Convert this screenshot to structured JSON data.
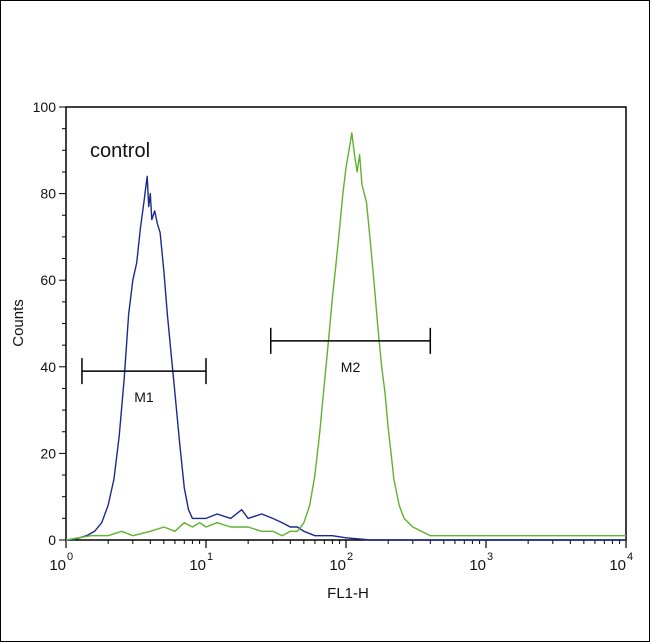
{
  "chart_data": {
    "type": "line",
    "xscale": "log",
    "xlim": [
      1,
      10000
    ],
    "ylim": [
      0,
      100
    ],
    "xlabel": "FL1-H",
    "ylabel": "Counts",
    "annotation": "control",
    "x_ticks": [
      {
        "value": 1,
        "base": "10",
        "exp": "0"
      },
      {
        "value": 10,
        "base": "10",
        "exp": "1"
      },
      {
        "value": 100,
        "base": "10",
        "exp": "2"
      },
      {
        "value": 1000,
        "base": "10",
        "exp": "3"
      },
      {
        "value": 10000,
        "base": "10",
        "exp": "4"
      }
    ],
    "y_ticks": [
      0,
      20,
      40,
      60,
      80,
      100
    ],
    "gates": [
      {
        "label": "M1",
        "x1": 1.3,
        "x2": 10,
        "y": 39
      },
      {
        "label": "M2",
        "x1": 29,
        "x2": 400,
        "y": 46
      }
    ],
    "series": [
      {
        "color": "#1a2a8c",
        "points": [
          [
            1,
            0
          ],
          [
            1.12,
            0
          ],
          [
            1.25,
            0.5
          ],
          [
            1.4,
            1
          ],
          [
            1.6,
            2
          ],
          [
            1.8,
            4
          ],
          [
            2.0,
            8
          ],
          [
            2.2,
            14
          ],
          [
            2.4,
            24
          ],
          [
            2.6,
            37
          ],
          [
            2.8,
            52
          ],
          [
            3.0,
            60
          ],
          [
            3.2,
            64
          ],
          [
            3.4,
            72
          ],
          [
            3.6,
            78
          ],
          [
            3.7,
            81
          ],
          [
            3.8,
            84
          ],
          [
            3.9,
            77
          ],
          [
            4.0,
            80
          ],
          [
            4.1,
            74
          ],
          [
            4.3,
            76
          ],
          [
            4.5,
            73
          ],
          [
            4.7,
            71
          ],
          [
            5.0,
            62
          ],
          [
            5.3,
            52
          ],
          [
            5.6,
            44
          ],
          [
            6.0,
            34
          ],
          [
            6.5,
            22
          ],
          [
            7.0,
            12
          ],
          [
            7.5,
            7
          ],
          [
            8.0,
            5
          ],
          [
            9.0,
            5
          ],
          [
            10,
            5
          ],
          [
            12,
            6
          ],
          [
            15,
            5
          ],
          [
            18,
            7
          ],
          [
            20,
            5
          ],
          [
            25,
            6
          ],
          [
            30,
            5
          ],
          [
            35,
            4
          ],
          [
            40,
            3
          ],
          [
            45,
            3
          ],
          [
            50,
            2
          ],
          [
            60,
            1
          ],
          [
            70,
            1
          ],
          [
            80,
            1
          ],
          [
            100,
            0.5
          ],
          [
            150,
            0
          ],
          [
            200,
            0
          ],
          [
            300,
            0
          ],
          [
            1000,
            0
          ],
          [
            10000,
            0
          ]
        ]
      },
      {
        "color": "#5fb32e",
        "points": [
          [
            1,
            0
          ],
          [
            1.5,
            1
          ],
          [
            2,
            1
          ],
          [
            2.5,
            2
          ],
          [
            3,
            1
          ],
          [
            4,
            2
          ],
          [
            5,
            3
          ],
          [
            6,
            2
          ],
          [
            7,
            4
          ],
          [
            8,
            3
          ],
          [
            9,
            4
          ],
          [
            10,
            3
          ],
          [
            12,
            4
          ],
          [
            15,
            3
          ],
          [
            20,
            3
          ],
          [
            25,
            2
          ],
          [
            30,
            2
          ],
          [
            35,
            1
          ],
          [
            40,
            2
          ],
          [
            45,
            2
          ],
          [
            50,
            4
          ],
          [
            55,
            8
          ],
          [
            60,
            15
          ],
          [
            65,
            25
          ],
          [
            70,
            36
          ],
          [
            75,
            46
          ],
          [
            80,
            56
          ],
          [
            85,
            64
          ],
          [
            90,
            72
          ],
          [
            95,
            80
          ],
          [
            100,
            86
          ],
          [
            105,
            90
          ],
          [
            110,
            94
          ],
          [
            115,
            89
          ],
          [
            120,
            85
          ],
          [
            125,
            89
          ],
          [
            130,
            82
          ],
          [
            140,
            78
          ],
          [
            150,
            68
          ],
          [
            160,
            58
          ],
          [
            170,
            48
          ],
          [
            180,
            40
          ],
          [
            190,
            34
          ],
          [
            200,
            26
          ],
          [
            210,
            20
          ],
          [
            220,
            14
          ],
          [
            240,
            8
          ],
          [
            260,
            5
          ],
          [
            300,
            3
          ],
          [
            400,
            1
          ],
          [
            1000,
            1
          ],
          [
            3000,
            1
          ],
          [
            5000,
            1
          ],
          [
            8000,
            1
          ],
          [
            10000,
            1
          ]
        ]
      }
    ]
  }
}
